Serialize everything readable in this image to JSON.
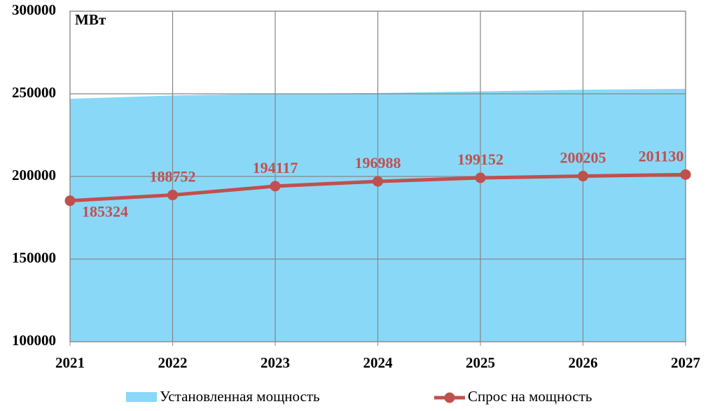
{
  "chart_data": {
    "type": "line",
    "y_label": "МВт",
    "categories": [
      "2021",
      "2022",
      "2023",
      "2024",
      "2025",
      "2026",
      "2027"
    ],
    "series": [
      {
        "name": "Установленная мощность",
        "type": "area",
        "color": "#8ad8f8",
        "values": [
          247000,
          249000,
          250000,
          250500,
          251500,
          252500,
          253000
        ]
      },
      {
        "name": "Спрос на мощность",
        "type": "line",
        "color": "#c0504d",
        "values": [
          185324,
          188752,
          194117,
          196988,
          199152,
          200205,
          201130
        ]
      }
    ],
    "ylim": [
      100000,
      300000
    ],
    "yticks": [
      100000,
      150000,
      200000,
      250000,
      300000
    ],
    "grid": true
  }
}
